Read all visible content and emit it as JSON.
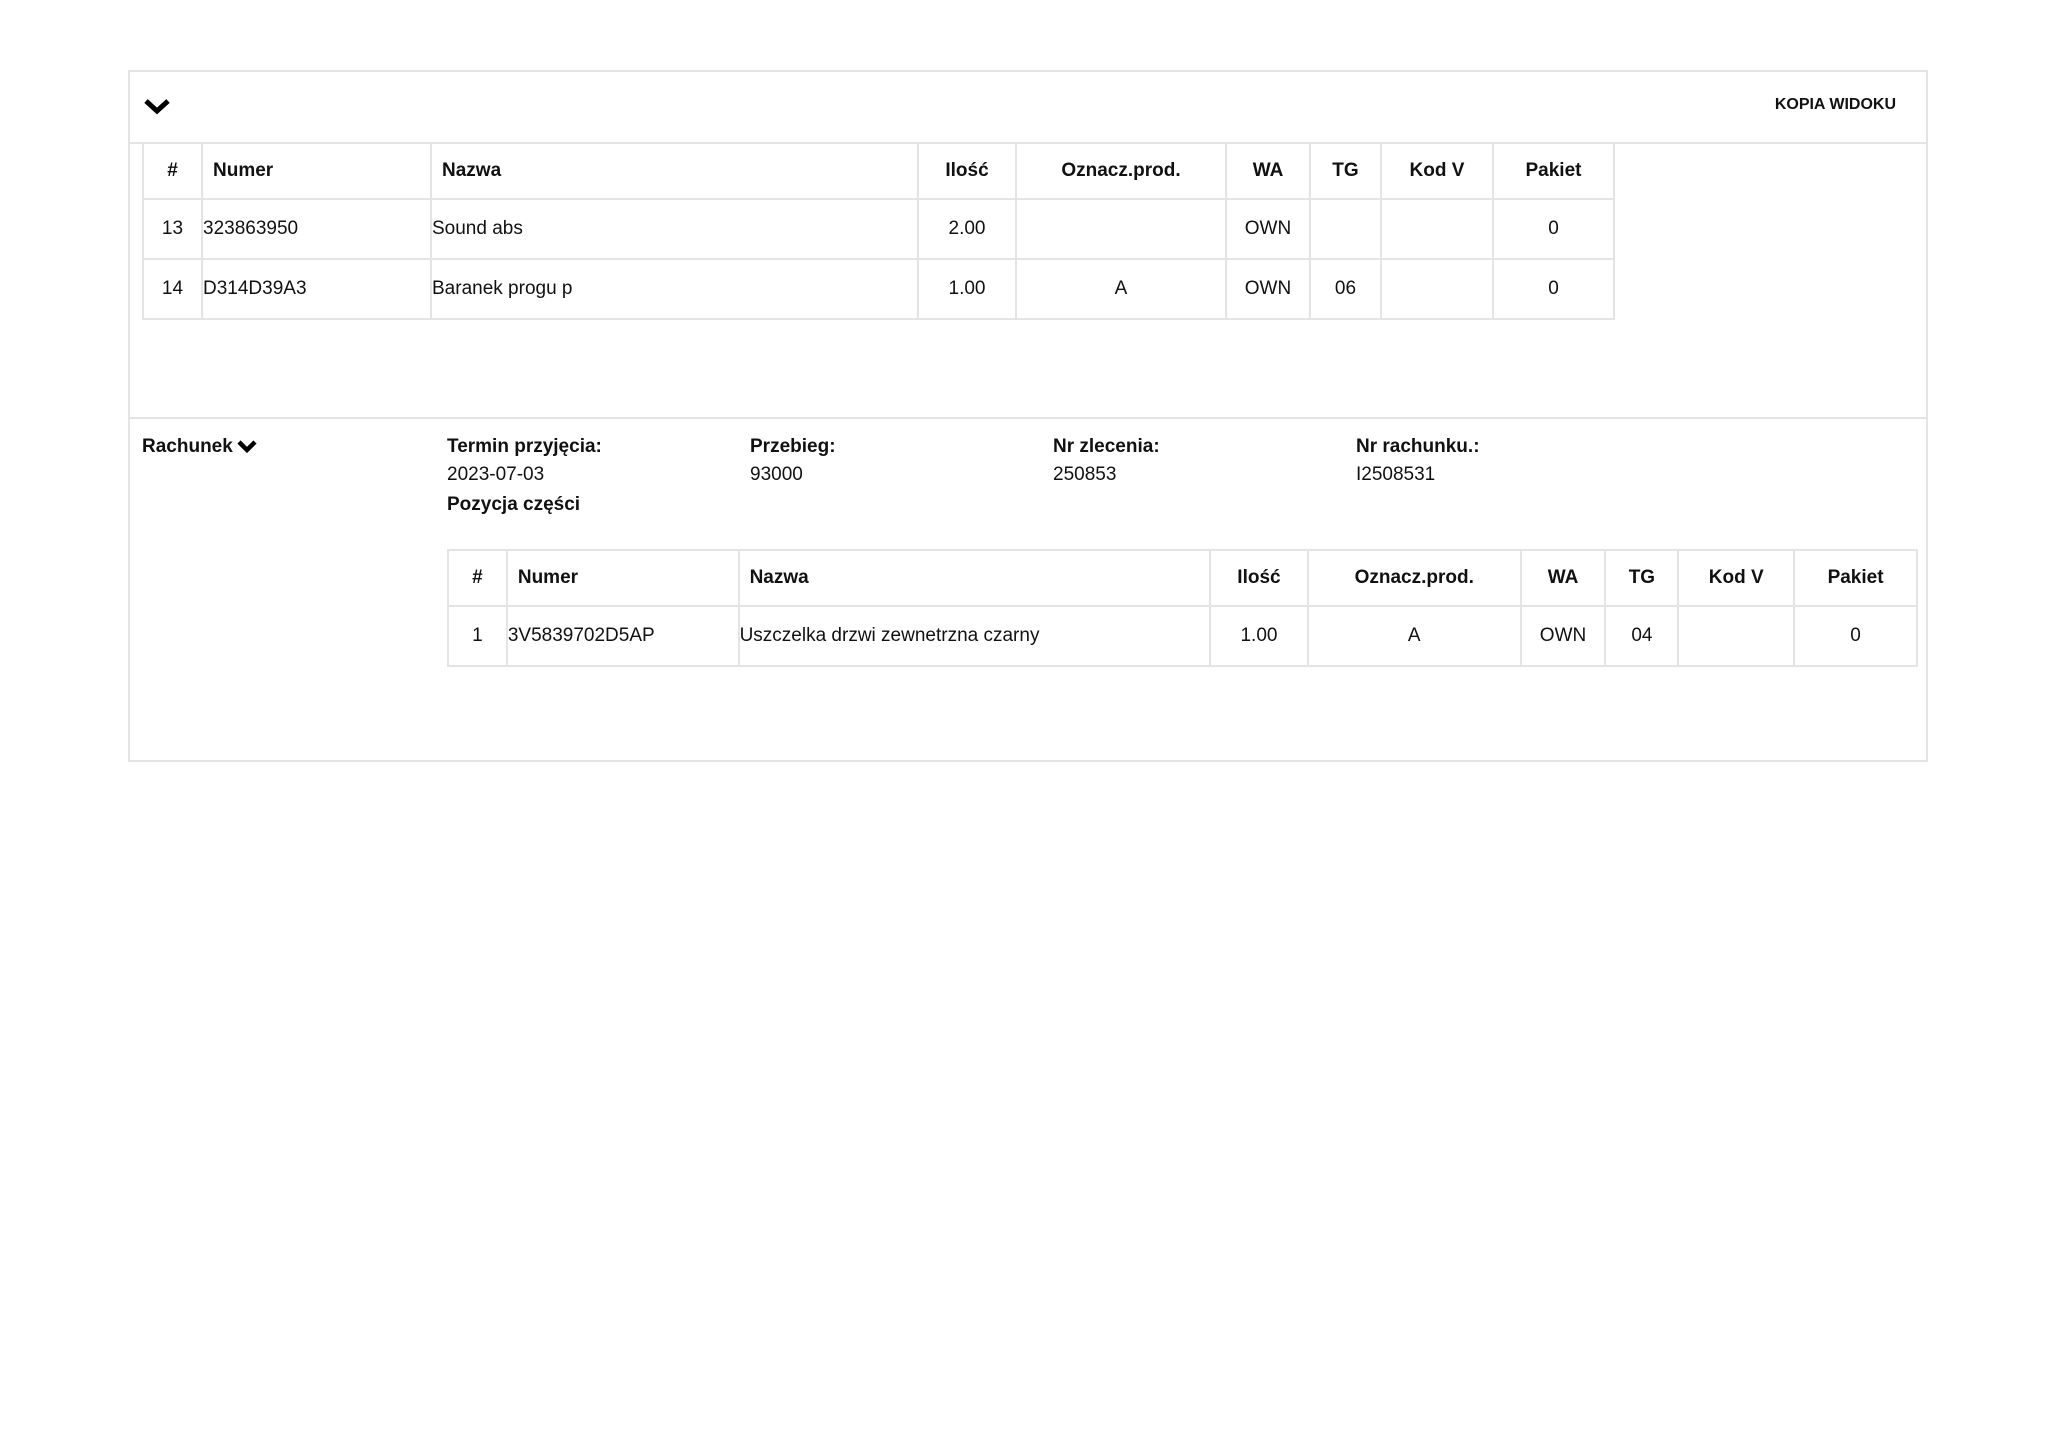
{
  "header": {
    "collapse_icon": "chevron-down-icon",
    "copy_view_label": "KOPIA WIDOKU"
  },
  "table1": {
    "columns": [
      "#",
      "Numer",
      "Nazwa",
      "Ilość",
      "Oznacz.prod.",
      "WA",
      "TG",
      "Kod V",
      "Pakiet"
    ],
    "rows": [
      [
        "13",
        "323863950",
        "Sound abs",
        "2.00",
        "",
        "OWN",
        "",
        "",
        "0"
      ],
      [
        "14",
        "D314D39A3",
        "Baranek progu p",
        "1.00",
        "A",
        "OWN",
        "06",
        "",
        "0"
      ]
    ]
  },
  "rachunek": {
    "title": "Rachunek",
    "fields": [
      {
        "label": "Termin przyjęcia:",
        "value": "2023-07-03"
      },
      {
        "label": "Przebieg:",
        "value": "93000"
      },
      {
        "label": "Nr zlecenia:",
        "value": "250853"
      },
      {
        "label": "Nr rachunku.:",
        "value": "I2508531"
      }
    ],
    "parts_heading": "Pozycja części",
    "table": {
      "columns": [
        "#",
        "Numer",
        "Nazwa",
        "Ilość",
        "Oznacz.prod.",
        "WA",
        "TG",
        "Kod V",
        "Pakiet"
      ],
      "rows": [
        [
          "1",
          "3V5839702D5AP",
          "Uszczelka drzwi zewnetrzna czarny",
          "1.00",
          "A",
          "OWN",
          "04",
          "",
          "0"
        ]
      ]
    }
  }
}
